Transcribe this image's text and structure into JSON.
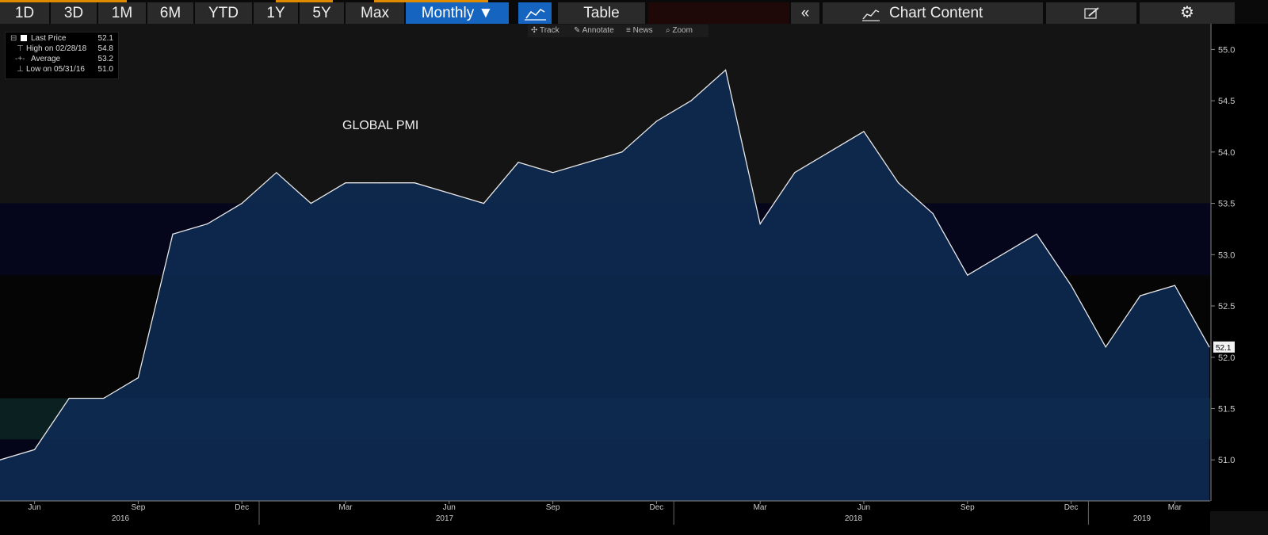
{
  "toolbar": {
    "periods": [
      "1D",
      "3D",
      "1M",
      "6M",
      "YTD",
      "1Y",
      "5Y",
      "Max"
    ],
    "frequency": "Monthly ▼",
    "table": "Table",
    "collapse": "«",
    "chart_content": "Chart Content",
    "chart_icon": "line-chart-icon",
    "edit_icon": "edit-icon",
    "settings_icon": "gear-icon"
  },
  "sub_toolbar": {
    "track": "Track",
    "annotate": "Annotate",
    "news": "News",
    "zoom": "Zoom"
  },
  "legend": {
    "last_label": "Last Price",
    "last_value": "52.1",
    "high_label": "High on 02/28/18",
    "high_value": "54.8",
    "avg_label": "Average",
    "avg_value": "53.2",
    "low_label": "Low on 05/31/16",
    "low_value": "51.0"
  },
  "chart_data": {
    "type": "area",
    "title": "GLOBAL PMI",
    "x": [
      "2016-05",
      "2016-06",
      "2016-07",
      "2016-08",
      "2016-09",
      "2016-10",
      "2016-11",
      "2016-12",
      "2017-01",
      "2017-02",
      "2017-03",
      "2017-04",
      "2017-05",
      "2017-06",
      "2017-07",
      "2017-08",
      "2017-09",
      "2017-10",
      "2017-11",
      "2017-12",
      "2018-01",
      "2018-02",
      "2018-03",
      "2018-04",
      "2018-05",
      "2018-06",
      "2018-07",
      "2018-08",
      "2018-09",
      "2018-10",
      "2018-11",
      "2018-12",
      "2019-01",
      "2019-02",
      "2019-03",
      "2019-04"
    ],
    "values": [
      51.0,
      51.1,
      51.6,
      51.6,
      51.8,
      53.2,
      53.3,
      53.5,
      53.8,
      53.5,
      53.7,
      53.7,
      53.7,
      53.6,
      53.5,
      53.9,
      53.8,
      53.9,
      54.0,
      54.3,
      54.5,
      54.8,
      53.3,
      53.8,
      54.0,
      54.2,
      53.7,
      53.4,
      52.8,
      53.0,
      53.2,
      52.7,
      52.1,
      52.6,
      52.7,
      52.1
    ],
    "ylim": [
      50.6,
      55.25
    ],
    "yticks": [
      "51.0",
      "51.5",
      "52.0",
      "52.5",
      "53.0",
      "53.5",
      "54.0",
      "54.5",
      "55.0"
    ],
    "month_ticks": [
      "Jun",
      "Sep",
      "Dec",
      "Mar",
      "Jun",
      "Sep",
      "Dec",
      "Mar",
      "Jun",
      "Sep",
      "Dec",
      "Mar"
    ],
    "year_labels": [
      "2016",
      "2017",
      "2018",
      "2019"
    ],
    "last_value_label": "52.1",
    "line_color": "#e8e8e8",
    "fill_color": "#0d2a52"
  }
}
